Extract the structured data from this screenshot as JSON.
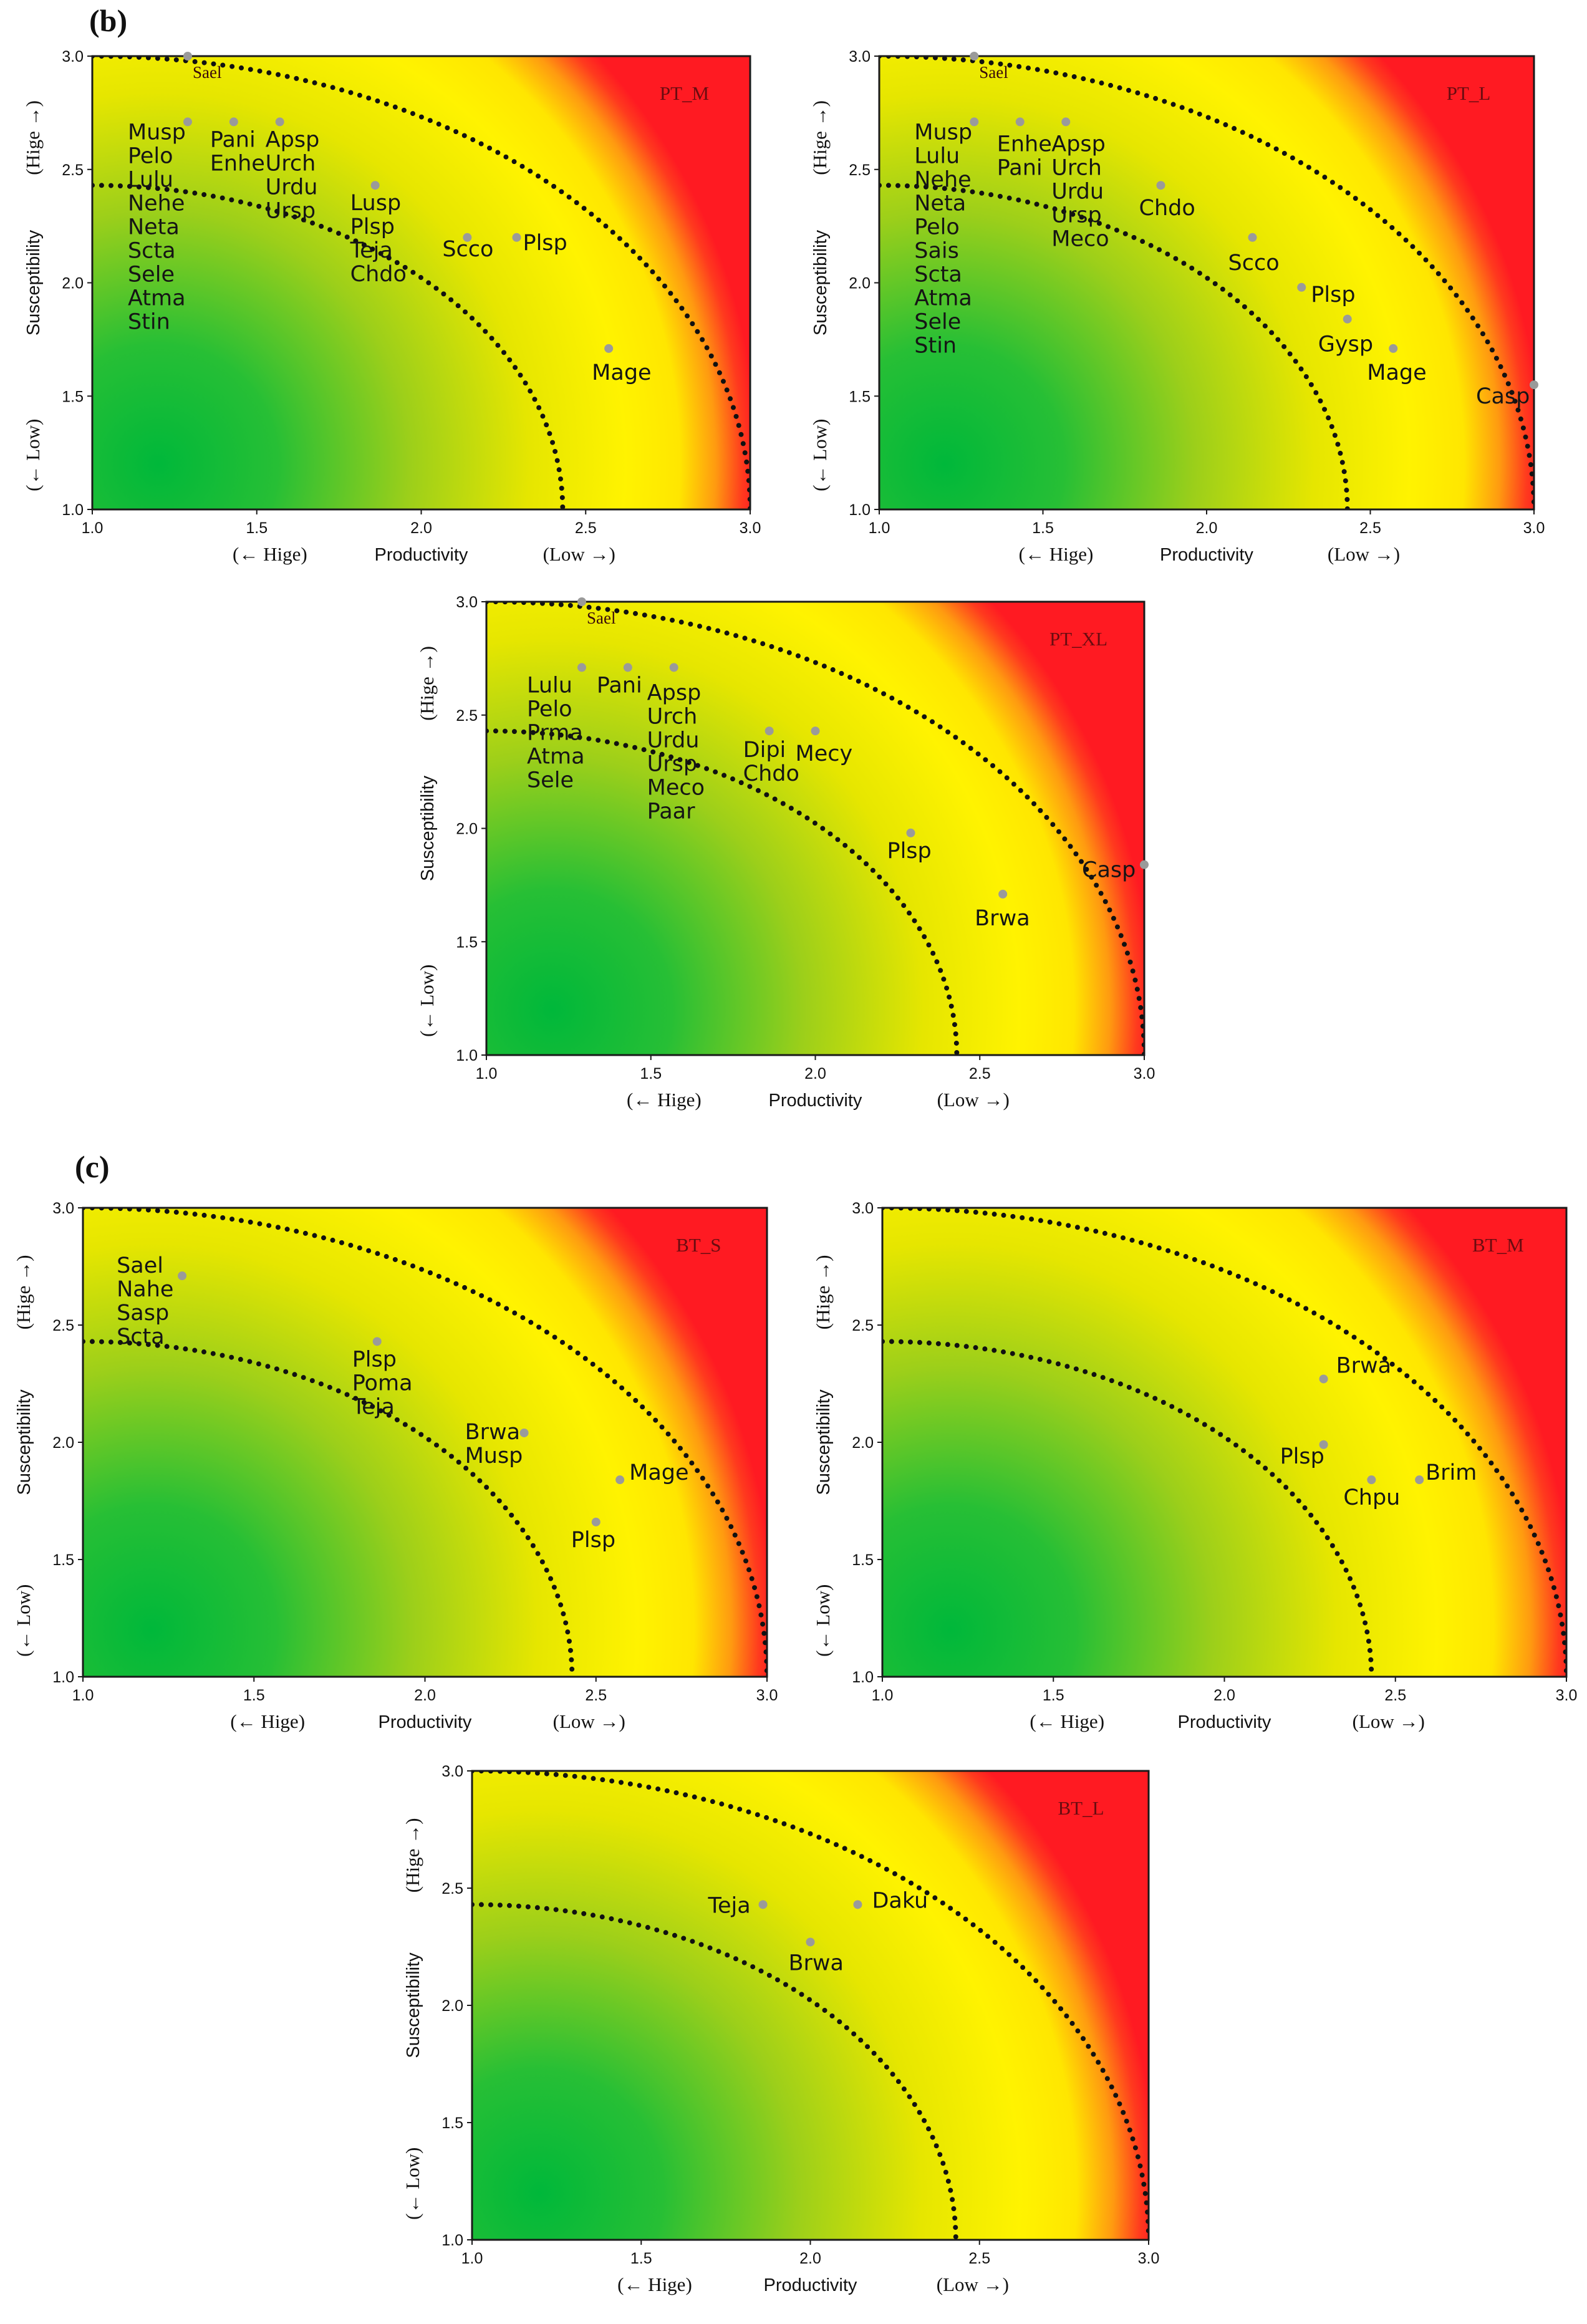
{
  "colors": {
    "red_zone": "#ff1a22",
    "yellow_zone": "#fff200",
    "green_zone": "#00bb3c",
    "point": "#9a9a9a",
    "curve": "#111111"
  },
  "sections": [
    {
      "id": "b",
      "label": "(b)"
    },
    {
      "id": "c",
      "label": "(c)"
    }
  ],
  "axis_text": {
    "x_title": "Productivity",
    "y_title": "Susceptibility",
    "x_low_dir": "(Low →)",
    "x_high_dir": "(← Hige)",
    "y_high_dir": "(Hige →)",
    "y_low_dir": "(← Low)"
  },
  "chart_data": [
    {
      "type": "scatter",
      "title": "PT_M",
      "xlabel": "Productivity",
      "ylabel": "Susceptibility",
      "xlim": [
        1.0,
        3.0
      ],
      "ylim": [
        1.0,
        3.0
      ],
      "xticks": [
        "1.0",
        "1.5",
        "2.0",
        "2.5",
        "3.0"
      ],
      "yticks": [
        "1.0",
        "1.5",
        "2.0",
        "2.5",
        "3.0"
      ],
      "curves": [
        {
          "center": [
            1.0,
            1.0
          ],
          "radius": 1.43
        },
        {
          "center": [
            1.0,
            1.0
          ],
          "radius": 2.0
        }
      ],
      "points": [
        {
          "x": 1.29,
          "y": 3.0,
          "labels": [
            "Sael"
          ]
        },
        {
          "x": 1.29,
          "y": 2.71,
          "labels": [
            "Musp",
            "Pelo",
            "Lulu",
            "Nehe",
            "Neta",
            "Scta",
            "Sele",
            "Atma",
            "Stin"
          ]
        },
        {
          "x": 1.43,
          "y": 2.71,
          "labels": [
            "Pani",
            "Enhe"
          ]
        },
        {
          "x": 1.57,
          "y": 2.71,
          "labels": [
            "Apsp",
            "Urch",
            "Urdu",
            "Ursp"
          ]
        },
        {
          "x": 1.86,
          "y": 2.43,
          "labels": [
            "Lusp",
            "Plsp",
            "Teja",
            "Chdo"
          ]
        },
        {
          "x": 2.14,
          "y": 2.2,
          "labels": [
            "Scco"
          ]
        },
        {
          "x": 2.29,
          "y": 2.2,
          "labels": [
            "Plsp"
          ]
        },
        {
          "x": 2.57,
          "y": 1.71,
          "labels": [
            "Mage"
          ]
        }
      ]
    },
    {
      "type": "scatter",
      "title": "PT_L",
      "xlabel": "Productivity",
      "ylabel": "Susceptibility",
      "xlim": [
        1.0,
        3.0
      ],
      "ylim": [
        1.0,
        3.0
      ],
      "xticks": [
        "1.0",
        "1.5",
        "2.0",
        "2.5",
        "3.0"
      ],
      "yticks": [
        "1.0",
        "1.5",
        "2.0",
        "2.5",
        "3.0"
      ],
      "curves": [
        {
          "center": [
            1.0,
            1.0
          ],
          "radius": 1.43
        },
        {
          "center": [
            1.0,
            1.0
          ],
          "radius": 2.0
        }
      ],
      "points": [
        {
          "x": 1.29,
          "y": 3.0,
          "labels": [
            "Sael"
          ]
        },
        {
          "x": 1.29,
          "y": 2.71,
          "labels": [
            "Musp",
            "Lulu",
            "Nehe",
            "Neta",
            "Pelo",
            "Sais",
            "Scta",
            "Atma",
            "Sele",
            "Stin"
          ]
        },
        {
          "x": 1.43,
          "y": 2.71,
          "labels": [
            "Enhe",
            "Pani"
          ]
        },
        {
          "x": 1.57,
          "y": 2.71,
          "labels": [
            "Apsp",
            "Urch",
            "Urdu",
            "Ursp",
            "Meco"
          ]
        },
        {
          "x": 1.86,
          "y": 2.43,
          "labels": [
            "Chdo"
          ]
        },
        {
          "x": 2.14,
          "y": 2.2,
          "labels": [
            "Scco"
          ]
        },
        {
          "x": 2.29,
          "y": 1.98,
          "labels": [
            "Plsp"
          ]
        },
        {
          "x": 2.43,
          "y": 1.84,
          "labels": [
            "Gysp"
          ]
        },
        {
          "x": 2.57,
          "y": 1.71,
          "labels": [
            "Mage"
          ]
        },
        {
          "x": 3.0,
          "y": 1.55,
          "labels": [
            "Casp"
          ]
        }
      ]
    },
    {
      "type": "scatter",
      "title": "PT_XL",
      "xlabel": "Productivity",
      "ylabel": "Susceptibility",
      "xlim": [
        1.0,
        3.0
      ],
      "ylim": [
        1.0,
        3.0
      ],
      "xticks": [
        "1.0",
        "1.5",
        "2.0",
        "2.5",
        "3.0"
      ],
      "yticks": [
        "1.0",
        "1.5",
        "2.0",
        "2.5",
        "3.0"
      ],
      "curves": [
        {
          "center": [
            1.0,
            1.0
          ],
          "radius": 1.43
        },
        {
          "center": [
            1.0,
            1.0
          ],
          "radius": 2.0
        }
      ],
      "points": [
        {
          "x": 1.29,
          "y": 3.0,
          "labels": [
            "Sael"
          ]
        },
        {
          "x": 1.29,
          "y": 2.71,
          "labels": [
            "Lulu",
            "Pelo",
            "Prma",
            "Atma",
            "Sele"
          ]
        },
        {
          "x": 1.43,
          "y": 2.71,
          "labels": [
            "Pani"
          ]
        },
        {
          "x": 1.57,
          "y": 2.71,
          "labels": [
            "Apsp",
            "Urch",
            "Urdu",
            "Ursp",
            "Meco",
            "Paar"
          ]
        },
        {
          "x": 1.86,
          "y": 2.43,
          "labels": [
            "Dipi",
            "Chdo"
          ]
        },
        {
          "x": 2.0,
          "y": 2.43,
          "labels": [
            "Mecy"
          ]
        },
        {
          "x": 2.29,
          "y": 1.98,
          "labels": [
            "Plsp"
          ]
        },
        {
          "x": 2.57,
          "y": 1.71,
          "labels": [
            "Brwa"
          ]
        },
        {
          "x": 3.0,
          "y": 1.84,
          "labels": [
            "Casp"
          ]
        }
      ]
    },
    {
      "type": "scatter",
      "title": "BT_S",
      "xlabel": "Productivity",
      "ylabel": "Susceptibility",
      "xlim": [
        1.0,
        3.0
      ],
      "ylim": [
        1.0,
        3.0
      ],
      "xticks": [
        "1.0",
        "1.5",
        "2.0",
        "2.5",
        "3.0"
      ],
      "yticks": [
        "1.0",
        "1.5",
        "2.0",
        "2.5",
        "3.0"
      ],
      "curves": [
        {
          "center": [
            1.0,
            1.0
          ],
          "radius": 1.43
        },
        {
          "center": [
            1.0,
            1.0
          ],
          "radius": 2.0
        }
      ],
      "points": [
        {
          "x": 1.29,
          "y": 2.71,
          "labels": [
            "Sael",
            "Nahe",
            "Sasp",
            "Scta"
          ]
        },
        {
          "x": 1.86,
          "y": 2.43,
          "labels": [
            "Plsp",
            "Poma",
            "Teja"
          ]
        },
        {
          "x": 2.29,
          "y": 2.04,
          "labels": [
            "Brwa",
            "Musp"
          ]
        },
        {
          "x": 2.57,
          "y": 1.84,
          "labels": [
            "Mage"
          ]
        },
        {
          "x": 2.5,
          "y": 1.66,
          "labels": [
            "Plsp"
          ]
        }
      ]
    },
    {
      "type": "scatter",
      "title": "BT_M",
      "xlabel": "Productivity",
      "ylabel": "Susceptibility",
      "xlim": [
        1.0,
        3.0
      ],
      "ylim": [
        1.0,
        3.0
      ],
      "xticks": [
        "1.0",
        "1.5",
        "2.0",
        "2.5",
        "3.0"
      ],
      "yticks": [
        "1.0",
        "1.5",
        "2.0",
        "2.5",
        "3.0"
      ],
      "curves": [
        {
          "center": [
            1.0,
            1.0
          ],
          "radius": 1.43
        },
        {
          "center": [
            1.0,
            1.0
          ],
          "radius": 2.0
        }
      ],
      "points": [
        {
          "x": 2.29,
          "y": 2.27,
          "labels": [
            "Brwa"
          ]
        },
        {
          "x": 2.29,
          "y": 1.99,
          "labels": [
            "Plsp"
          ]
        },
        {
          "x": 2.43,
          "y": 1.84,
          "labels": [
            "Chpu"
          ]
        },
        {
          "x": 2.57,
          "y": 1.84,
          "labels": [
            "Brim"
          ]
        }
      ]
    },
    {
      "type": "scatter",
      "title": "BT_L",
      "xlabel": "Productivity",
      "ylabel": "Susceptibility",
      "xlim": [
        1.0,
        3.0
      ],
      "ylim": [
        1.0,
        3.0
      ],
      "xticks": [
        "1.0",
        "1.5",
        "2.0",
        "2.5",
        "3.0"
      ],
      "yticks": [
        "1.0",
        "1.5",
        "2.0",
        "2.5",
        "3.0"
      ],
      "curves": [
        {
          "center": [
            1.0,
            1.0
          ],
          "radius": 1.43
        },
        {
          "center": [
            1.0,
            1.0
          ],
          "radius": 2.0
        }
      ],
      "points": [
        {
          "x": 1.86,
          "y": 2.43,
          "labels": [
            "Teja"
          ]
        },
        {
          "x": 2.14,
          "y": 2.43,
          "labels": [
            "Daku"
          ]
        },
        {
          "x": 2.0,
          "y": 2.27,
          "labels": [
            "Brwa"
          ]
        }
      ]
    }
  ]
}
